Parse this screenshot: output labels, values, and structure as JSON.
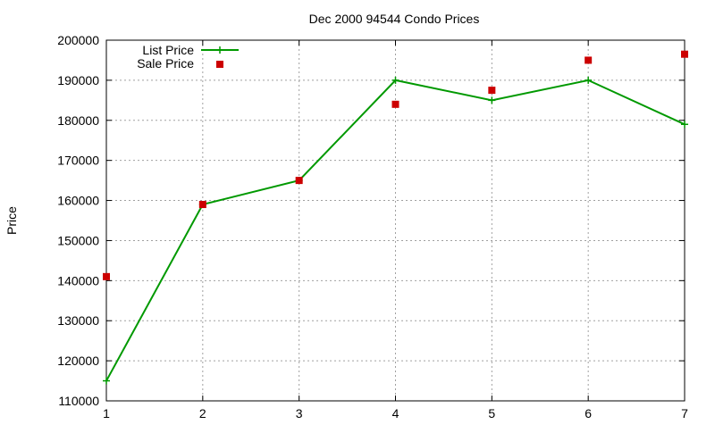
{
  "chart_data": {
    "type": "line",
    "title": "Dec 2000 94544 Condo Prices",
    "ylabel": "Price",
    "xlabel": "",
    "xlim": [
      1,
      7
    ],
    "ylim": [
      110000,
      200000
    ],
    "x_ticks": [
      "1",
      "2",
      "3",
      "4",
      "5",
      "6",
      "7"
    ],
    "y_ticks": [
      "110000",
      "120000",
      "130000",
      "140000",
      "150000",
      "160000",
      "170000",
      "180000",
      "190000",
      "200000"
    ],
    "grid": true,
    "legend_position": "top-left",
    "series": [
      {
        "name": "List Price",
        "style": "line-with-plus-markers",
        "color": "#009900",
        "x": [
          1,
          2,
          3,
          4,
          5,
          6,
          7
        ],
        "values": [
          115000,
          159000,
          165000,
          190000,
          185000,
          190000,
          179000
        ]
      },
      {
        "name": "Sale Price",
        "style": "square-markers",
        "color": "#cc0000",
        "x": [
          1,
          2,
          3,
          4,
          5,
          6,
          7
        ],
        "values": [
          141000,
          159000,
          165000,
          184000,
          187500,
          195000,
          196500
        ]
      }
    ]
  }
}
